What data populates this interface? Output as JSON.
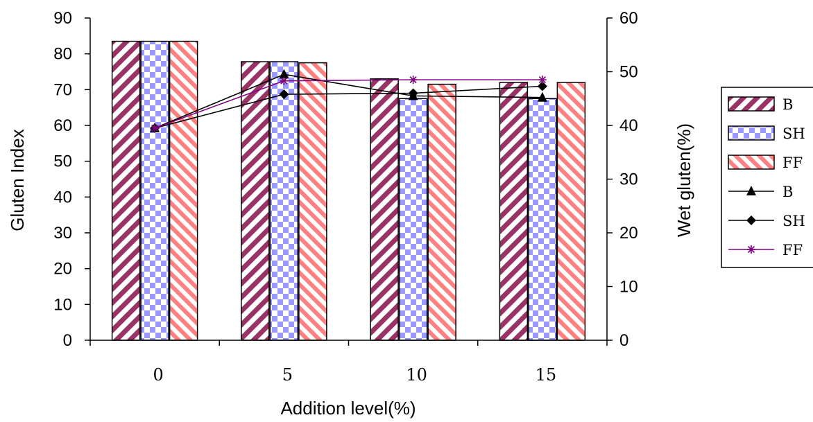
{
  "chart_data": {
    "type": "bar",
    "title": "",
    "xlabel": "Addition level(%)",
    "ylabel": "Gluten Index",
    "y2label": "Wet gluten(%)",
    "categories": [
      "0",
      "5",
      "10",
      "15"
    ],
    "ylim": [
      0,
      90
    ],
    "y_ticks": [
      0,
      10,
      20,
      30,
      40,
      50,
      60,
      70,
      80,
      90
    ],
    "y2lim": [
      0,
      60
    ],
    "y2_ticks": [
      0,
      10,
      20,
      30,
      40,
      50,
      60
    ],
    "grid": false,
    "legend_position": "right",
    "bar_series": [
      {
        "name": "B",
        "axis": "left",
        "values": [
          83.5,
          77.8,
          73.0,
          72.0
        ],
        "color": "#993366"
      },
      {
        "name": "SH",
        "axis": "left",
        "values": [
          83.5,
          77.8,
          67.5,
          67.5
        ],
        "color": "#9999ff"
      },
      {
        "name": "FF",
        "axis": "left",
        "values": [
          83.5,
          77.5,
          71.5,
          72.0
        ],
        "color": "#ff8080"
      }
    ],
    "line_series": [
      {
        "name": "B",
        "axis": "right",
        "values": [
          39.5,
          49.5,
          45.5,
          45.2
        ],
        "marker": "triangle",
        "color": "#000000"
      },
      {
        "name": "SH",
        "axis": "right",
        "values": [
          39.5,
          45.8,
          46.0,
          47.3
        ],
        "marker": "diamond",
        "color": "#000000"
      },
      {
        "name": "FF",
        "axis": "right",
        "values": [
          39.5,
          48.3,
          48.5,
          48.5
        ],
        "marker": "star",
        "color": "#800080"
      }
    ]
  }
}
